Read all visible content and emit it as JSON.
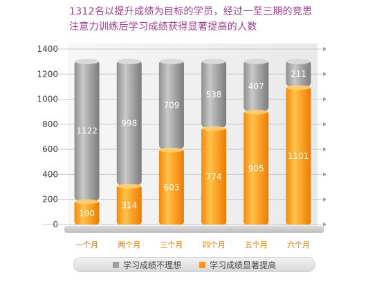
{
  "title_lines": [
    "1312名以提升成绩为目标的学员，经过一至三期的竞思",
    "注意力训练后学习成绩获得显著提高的人数"
  ],
  "colors": {
    "gray": "#9e9e9e",
    "orange": "#f7941d",
    "title": "#9b3a8c"
  },
  "chart_data": {
    "type": "bar",
    "stacked": true,
    "categories": [
      "一个月",
      "两个月",
      "三个月",
      "四个月",
      "五个月",
      "六个月"
    ],
    "series": [
      {
        "name": "学习成绩显著提高",
        "color": "#f7941d",
        "values": [
          190,
          314,
          603,
          774,
          905,
          1101
        ]
      },
      {
        "name": "学习成绩不理想",
        "color": "#9e9e9e",
        "values": [
          1122,
          998,
          709,
          538,
          407,
          211
        ]
      }
    ],
    "ylim": [
      0,
      1400
    ],
    "yticks": [
      0,
      200,
      400,
      600,
      800,
      1000,
      1200,
      1400
    ],
    "grid": true,
    "legend_position": "bottom"
  },
  "legend": [
    {
      "label": "学习成绩不理想",
      "color": "#9e9e9e"
    },
    {
      "label": "学习成绩显著提高",
      "color": "#f7941d"
    }
  ]
}
